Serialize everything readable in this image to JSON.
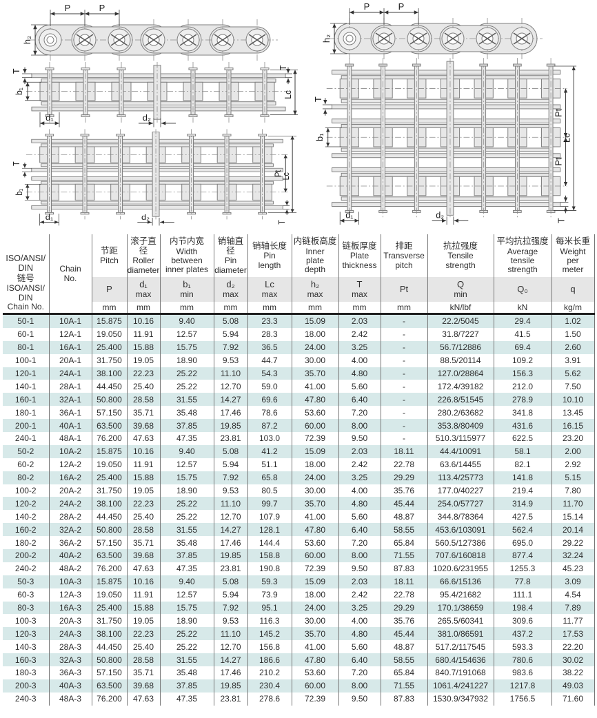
{
  "diagram_labels": {
    "pitch": "P",
    "plate_height": "h₂",
    "plate_thickness": "T",
    "inner_width": "b₁",
    "pin_length": "Lc",
    "roller_diameter": "d₁",
    "pin_diameter": "d₂",
    "transverse_pitch": "Pt"
  },
  "table": {
    "chain_no_header": {
      "zh": "ISO/ANSI/\nDIN\n链号",
      "en": "ISO/ANSI/\nDIN\nChain No."
    },
    "chain_no2_label": "Chain\nNo.",
    "columns": [
      {
        "zh": "节距",
        "en": "Pitch",
        "sym": "P",
        "lim": "",
        "unit": "mm"
      },
      {
        "zh": "滚子直径",
        "en": "Roller\ndiameter",
        "sym": "d₁",
        "lim": "max",
        "unit": "mm"
      },
      {
        "zh": "内节内宽",
        "en": "Width\nbetween\ninner plates",
        "sym": "b₁",
        "lim": "min",
        "unit": "mm"
      },
      {
        "zh": "销轴直径",
        "en": "Pin\ndiameter",
        "sym": "d₂",
        "lim": "max",
        "unit": "mm"
      },
      {
        "zh": "销轴长度",
        "en": "Pin\nlength",
        "sym": "Lc",
        "lim": "max",
        "unit": "mm"
      },
      {
        "zh": "内链板高度",
        "en": "Inner\nplate\ndepth",
        "sym": "h₂",
        "lim": "max",
        "unit": "mm"
      },
      {
        "zh": "链板厚度",
        "en": "Plate\nthickness",
        "sym": "T",
        "lim": "max",
        "unit": "mm"
      },
      {
        "zh": "排距",
        "en": "Transverse\npitch",
        "sym": "Pt",
        "lim": "",
        "unit": "mm"
      },
      {
        "zh": "抗拉强度",
        "en": "Tensile\nstrength",
        "sym": "Q",
        "lim": "min",
        "unit": "kN/lbf"
      },
      {
        "zh": "平均抗拉强度",
        "en": "Average\ntensile\nstrength",
        "sym": "Q₀",
        "lim": "",
        "unit": "kN"
      },
      {
        "zh": "每米长重",
        "en": "Weight\nper\nmeter",
        "sym": "q",
        "lim": "",
        "unit": "kg/m"
      }
    ],
    "rows": [
      [
        "50-1",
        "10A-1",
        "15.875",
        "10.16",
        "9.40",
        "5.08",
        "23.3",
        "15.09",
        "2.03",
        "-",
        "22.2/5045",
        "29.4",
        "1.02"
      ],
      [
        "60-1",
        "12A-1",
        "19.050",
        "11.91",
        "12.57",
        "5.94",
        "28.3",
        "18.00",
        "2.42",
        "-",
        "31.8/7227",
        "41.5",
        "1.50"
      ],
      [
        "80-1",
        "16A-1",
        "25.400",
        "15.88",
        "15.75",
        "7.92",
        "36.5",
        "24.00",
        "3.25",
        "-",
        "56.7/12886",
        "69.4",
        "2.60"
      ],
      [
        "100-1",
        "20A-1",
        "31.750",
        "19.05",
        "18.90",
        "9.53",
        "44.7",
        "30.00",
        "4.00",
        "-",
        "88.5/20114",
        "109.2",
        "3.91"
      ],
      [
        "120-1",
        "24A-1",
        "38.100",
        "22.23",
        "25.22",
        "11.10",
        "54.3",
        "35.70",
        "4.80",
        "-",
        "127.0/28864",
        "156.3",
        "5.62"
      ],
      [
        "140-1",
        "28A-1",
        "44.450",
        "25.40",
        "25.22",
        "12.70",
        "59.0",
        "41.00",
        "5.60",
        "-",
        "172.4/39182",
        "212.0",
        "7.50"
      ],
      [
        "160-1",
        "32A-1",
        "50.800",
        "28.58",
        "31.55",
        "14.27",
        "69.6",
        "47.80",
        "6.40",
        "-",
        "226.8/51545",
        "278.9",
        "10.10"
      ],
      [
        "180-1",
        "36A-1",
        "57.150",
        "35.71",
        "35.48",
        "17.46",
        "78.6",
        "53.60",
        "7.20",
        "-",
        "280.2/63682",
        "341.8",
        "13.45"
      ],
      [
        "200-1",
        "40A-1",
        "63.500",
        "39.68",
        "37.85",
        "19.85",
        "87.2",
        "60.00",
        "8.00",
        "-",
        "353.8/80409",
        "431.6",
        "16.15"
      ],
      [
        "240-1",
        "48A-1",
        "76.200",
        "47.63",
        "47.35",
        "23.81",
        "103.0",
        "72.39",
        "9.50",
        "-",
        "510.3/115977",
        "622.5",
        "23.20"
      ],
      [
        "50-2",
        "10A-2",
        "15.875",
        "10.16",
        "9.40",
        "5.08",
        "41.2",
        "15.09",
        "2.03",
        "18.11",
        "44.4/10091",
        "58.1",
        "2.00"
      ],
      [
        "60-2",
        "12A-2",
        "19.050",
        "11.91",
        "12.57",
        "5.94",
        "51.1",
        "18.00",
        "2.42",
        "22.78",
        "63.6/14455",
        "82.1",
        "2.92"
      ],
      [
        "80-2",
        "16A-2",
        "25.400",
        "15.88",
        "15.75",
        "7.92",
        "65.8",
        "24.00",
        "3.25",
        "29.29",
        "113.4/25773",
        "141.8",
        "5.15"
      ],
      [
        "100-2",
        "20A-2",
        "31.750",
        "19.05",
        "18.90",
        "9.53",
        "80.5",
        "30.00",
        "4.00",
        "35.76",
        "177.0/40227",
        "219.4",
        "7.80"
      ],
      [
        "120-2",
        "24A-2",
        "38.100",
        "22.23",
        "25.22",
        "11.10",
        "99.7",
        "35.70",
        "4.80",
        "45.44",
        "254.0/57727",
        "314.9",
        "11.70"
      ],
      [
        "140-2",
        "28A-2",
        "44.450",
        "25.40",
        "25.22",
        "12.70",
        "107.9",
        "41.00",
        "5.60",
        "48.87",
        "344.8/78364",
        "427.5",
        "15.14"
      ],
      [
        "160-2",
        "32A-2",
        "50.800",
        "28.58",
        "31.55",
        "14.27",
        "128.1",
        "47.80",
        "6.40",
        "58.55",
        "453.6/103091",
        "562.4",
        "20.14"
      ],
      [
        "180-2",
        "36A-2",
        "57.150",
        "35.71",
        "35.48",
        "17.46",
        "144.4",
        "53.60",
        "7.20",
        "65.84",
        "560.5/127386",
        "695.0",
        "29.22"
      ],
      [
        "200-2",
        "40A-2",
        "63.500",
        "39.68",
        "37.85",
        "19.85",
        "158.8",
        "60.00",
        "8.00",
        "71.55",
        "707.6/160818",
        "877.4",
        "32.24"
      ],
      [
        "240-2",
        "48A-2",
        "76.200",
        "47.63",
        "47.35",
        "23.81",
        "190.8",
        "72.39",
        "9.50",
        "87.83",
        "1020.6/231955",
        "1255.3",
        "45.23"
      ],
      [
        "50-3",
        "10A-3",
        "15.875",
        "10.16",
        "9.40",
        "5.08",
        "59.3",
        "15.09",
        "2.03",
        "18.11",
        "66.6/15136",
        "77.8",
        "3.09"
      ],
      [
        "60-3",
        "12A-3",
        "19.050",
        "11.91",
        "12.57",
        "5.94",
        "73.9",
        "18.00",
        "2.42",
        "22.78",
        "95.4/21682",
        "111.1",
        "4.54"
      ],
      [
        "80-3",
        "16A-3",
        "25.400",
        "15.88",
        "15.75",
        "7.92",
        "95.1",
        "24.00",
        "3.25",
        "29.29",
        "170.1/38659",
        "198.4",
        "7.89"
      ],
      [
        "100-3",
        "20A-3",
        "31.750",
        "19.05",
        "18.90",
        "9.53",
        "116.3",
        "30.00",
        "4.00",
        "35.76",
        "265.5/60341",
        "309.6",
        "11.77"
      ],
      [
        "120-3",
        "24A-3",
        "38.100",
        "22.23",
        "25.22",
        "11.10",
        "145.2",
        "35.70",
        "4.80",
        "45.44",
        "381.0/86591",
        "437.2",
        "17.53"
      ],
      [
        "140-3",
        "28A-3",
        "44.450",
        "25.40",
        "25.22",
        "12.70",
        "156.8",
        "41.00",
        "5.60",
        "48.87",
        "517.2/117545",
        "593.3",
        "22.20"
      ],
      [
        "160-3",
        "32A-3",
        "50.800",
        "28.58",
        "31.55",
        "14.27",
        "186.6",
        "47.80",
        "6.40",
        "58.55",
        "680.4/154636",
        "780.6",
        "30.02"
      ],
      [
        "180-3",
        "36A-3",
        "57.150",
        "35.71",
        "35.48",
        "17.46",
        "210.2",
        "53.60",
        "7.20",
        "65.84",
        "840.7/191068",
        "983.6",
        "38.22"
      ],
      [
        "200-3",
        "40A-3",
        "63.500",
        "39.68",
        "37.85",
        "19.85",
        "230.4",
        "60.00",
        "8.00",
        "71.55",
        "1061.4/241227",
        "1217.8",
        "49.03"
      ],
      [
        "240-3",
        "48A-3",
        "76.200",
        "47.63",
        "47.35",
        "23.81",
        "278.6",
        "72.39",
        "9.50",
        "87.83",
        "1530.9/347932",
        "1756.5",
        "71.60"
      ]
    ]
  },
  "colors": {
    "row_alt": "#d7e9e9",
    "subheader_bg": "#e6e6e6",
    "grid_border": "#757575",
    "heavy_rule": "#1f1f1f",
    "text": "#2e2e2e",
    "diagram_metal": "#e7e7e7",
    "diagram_line": "#7d7d7d"
  }
}
